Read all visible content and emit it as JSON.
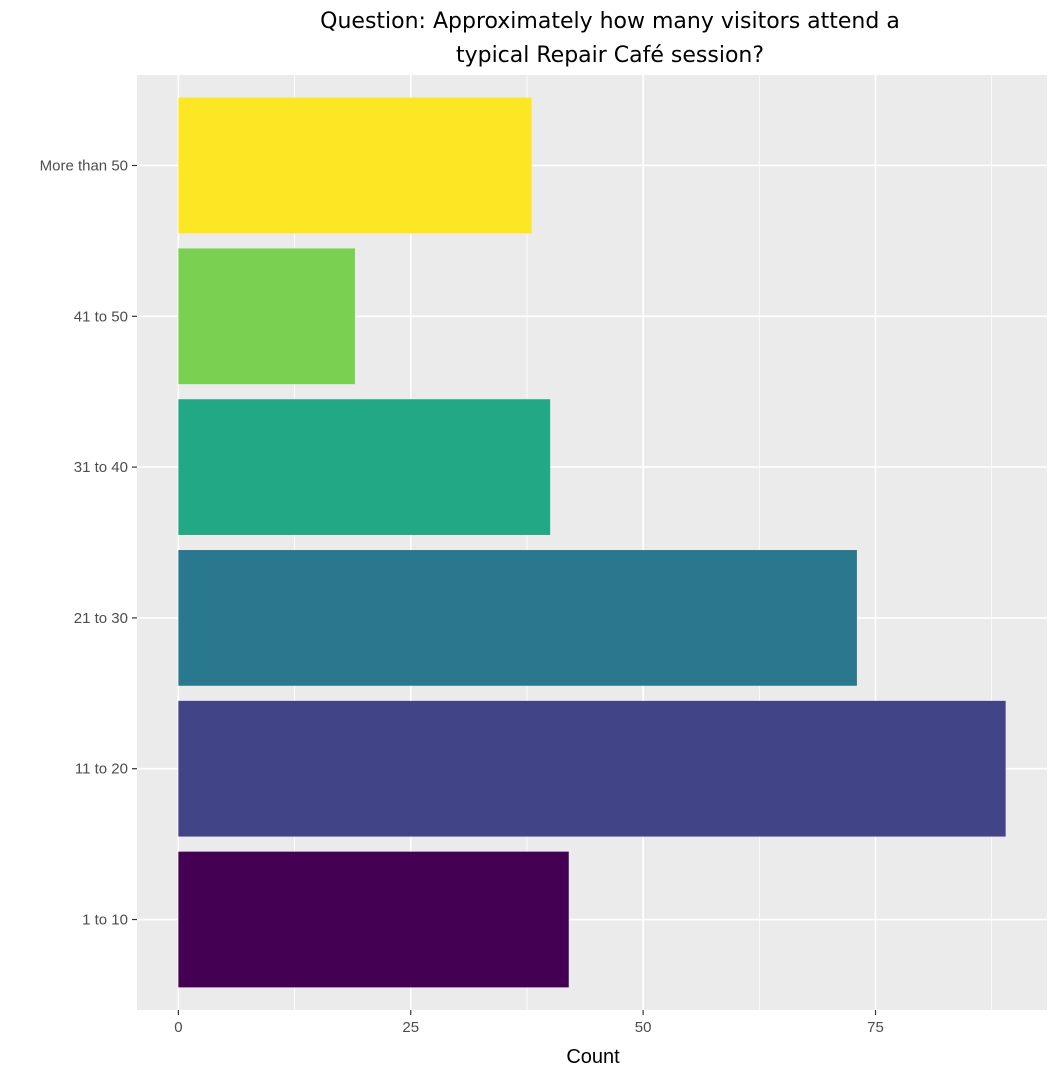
{
  "chart_data": {
    "type": "bar",
    "orientation": "horizontal",
    "title_lines": [
      "Question: Approximately how many visitors attend a",
      "typical Repair Café session?"
    ],
    "xlabel": "Count",
    "ylabel": "",
    "categories": [
      "1 to 10",
      "11 to 20",
      "21 to 30",
      "31 to 40",
      "41 to 50",
      "More than 50"
    ],
    "values": [
      42,
      89,
      73,
      40,
      19,
      38
    ],
    "colors": [
      "#440154",
      "#414487",
      "#2a788e",
      "#22a884",
      "#7ad151",
      "#fde725"
    ],
    "x_ticks": [
      0,
      25,
      50,
      75
    ],
    "x_tick_labels": [
      "0",
      "25",
      "50",
      "75"
    ],
    "xlim": [
      -4.45,
      93.45
    ],
    "grid": true,
    "legend": "none",
    "panel_background": "#ebebeb",
    "grid_color": "#ffffff"
  }
}
